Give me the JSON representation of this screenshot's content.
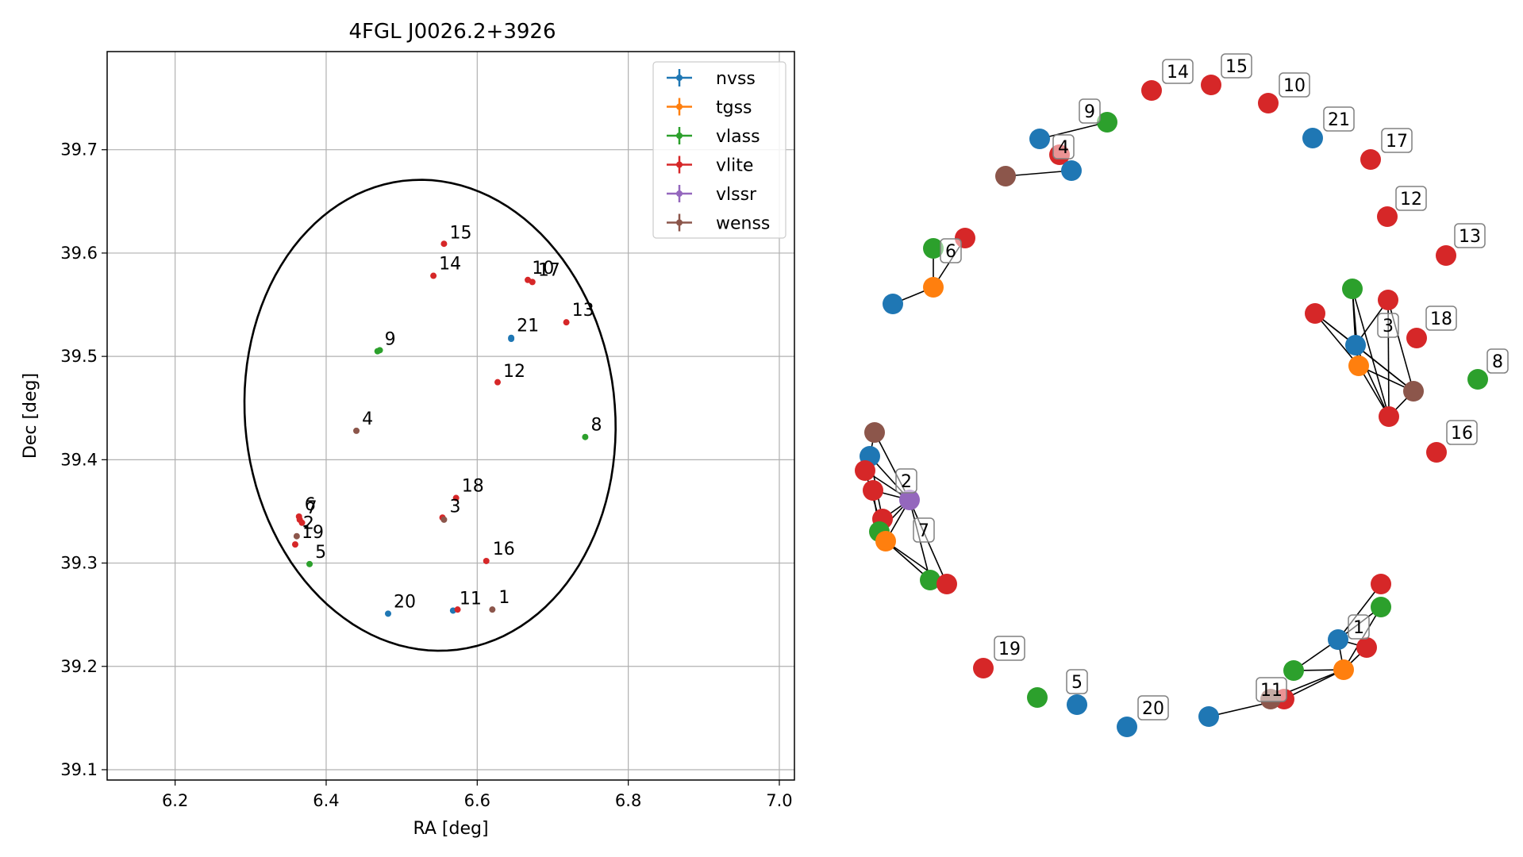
{
  "colors": {
    "nvss": "#1f77b4",
    "tgss": "#ff7f0e",
    "vlass": "#2ca02c",
    "vlite": "#d62728",
    "vlssr": "#9467bd",
    "wenss": "#8c564b"
  },
  "chart_data": [
    {
      "type": "scatter",
      "title": "4FGL J0026.2+3926",
      "xlabel": "RA [deg]",
      "ylabel": "Dec [deg]",
      "xlim": [
        6.11,
        7.02
      ],
      "ylim": [
        39.09,
        39.795
      ],
      "xticks": [
        6.2,
        6.4,
        6.6,
        6.8,
        7.0
      ],
      "xtick_labels": [
        "6.2",
        "6.4",
        "6.6",
        "6.8",
        "7.0"
      ],
      "yticks": [
        39.1,
        39.2,
        39.3,
        39.4,
        39.5,
        39.6,
        39.7
      ],
      "ytick_labels": [
        "39.1",
        "39.2",
        "39.3",
        "39.4",
        "39.5",
        "39.6",
        "39.7"
      ],
      "grid": true,
      "legend_position": "top-right",
      "legend": [
        "nvss",
        "tgss",
        "vlass",
        "vlite",
        "vlssr",
        "wenss"
      ],
      "ellipse": {
        "center": [
          6.5375,
          39.443
        ],
        "half_axis_ra": 0.2475,
        "half_axis_dec": 0.226,
        "angle_deg": 17
      },
      "points": [
        {
          "ra": 6.645,
          "dec": 39.518,
          "survey": "nvss"
        },
        {
          "ra": 6.645,
          "dec": 39.517,
          "survey": "nvss"
        },
        {
          "ra": 6.482,
          "dec": 39.251,
          "survey": "nvss"
        },
        {
          "ra": 6.568,
          "dec": 39.254,
          "survey": "nvss"
        },
        {
          "ra": 6.468,
          "dec": 39.505,
          "survey": "vlass"
        },
        {
          "ra": 6.471,
          "dec": 39.506,
          "survey": "vlass"
        },
        {
          "ra": 6.743,
          "dec": 39.422,
          "survey": "vlass"
        },
        {
          "ra": 6.378,
          "dec": 39.299,
          "survey": "vlass"
        },
        {
          "ra": 6.556,
          "dec": 39.609,
          "survey": "vlite"
        },
        {
          "ra": 6.542,
          "dec": 39.578,
          "survey": "vlite"
        },
        {
          "ra": 6.667,
          "dec": 39.574,
          "survey": "vlite"
        },
        {
          "ra": 6.673,
          "dec": 39.572,
          "survey": "vlite"
        },
        {
          "ra": 6.718,
          "dec": 39.533,
          "survey": "vlite"
        },
        {
          "ra": 6.627,
          "dec": 39.475,
          "survey": "vlite"
        },
        {
          "ra": 6.572,
          "dec": 39.363,
          "survey": "vlite"
        },
        {
          "ra": 6.554,
          "dec": 39.344,
          "survey": "vlite"
        },
        {
          "ra": 6.612,
          "dec": 39.302,
          "survey": "vlite"
        },
        {
          "ra": 6.574,
          "dec": 39.255,
          "survey": "vlite"
        },
        {
          "ra": 6.364,
          "dec": 39.345,
          "survey": "vlite"
        },
        {
          "ra": 6.365,
          "dec": 39.342,
          "survey": "vlite"
        },
        {
          "ra": 6.368,
          "dec": 39.339,
          "survey": "vlite"
        },
        {
          "ra": 6.359,
          "dec": 39.318,
          "survey": "vlite"
        },
        {
          "ra": 6.44,
          "dec": 39.428,
          "survey": "wenss"
        },
        {
          "ra": 6.556,
          "dec": 39.342,
          "survey": "wenss"
        },
        {
          "ra": 6.62,
          "dec": 39.255,
          "survey": "wenss"
        },
        {
          "ra": 6.361,
          "dec": 39.326,
          "survey": "wenss"
        }
      ],
      "labels": [
        {
          "text": "15",
          "ra": 6.555,
          "dec": 39.608
        },
        {
          "text": "14",
          "ra": 6.541,
          "dec": 39.578
        },
        {
          "text": "10",
          "ra": 6.664,
          "dec": 39.574
        },
        {
          "text": "17",
          "ra": 6.672,
          "dec": 39.572
        },
        {
          "text": "13",
          "ra": 6.717,
          "dec": 39.533
        },
        {
          "text": "21",
          "ra": 6.644,
          "dec": 39.518
        },
        {
          "text": "9",
          "ra": 6.469,
          "dec": 39.505
        },
        {
          "text": "12",
          "ra": 6.626,
          "dec": 39.474
        },
        {
          "text": "4",
          "ra": 6.439,
          "dec": 39.428
        },
        {
          "text": "8",
          "ra": 6.742,
          "dec": 39.422
        },
        {
          "text": "18",
          "ra": 6.571,
          "dec": 39.363
        },
        {
          "text": "3",
          "ra": 6.555,
          "dec": 39.343
        },
        {
          "text": "6",
          "ra": 6.363,
          "dec": 39.345
        },
        {
          "text": "7",
          "ra": 6.365,
          "dec": 39.342
        },
        {
          "text": "2",
          "ra": 6.361,
          "dec": 39.327
        },
        {
          "text": "19",
          "ra": 6.359,
          "dec": 39.318
        },
        {
          "text": "5",
          "ra": 6.377,
          "dec": 39.299
        },
        {
          "text": "16",
          "ra": 6.612,
          "dec": 39.302
        },
        {
          "text": "20",
          "ra": 6.481,
          "dec": 39.251
        },
        {
          "text": "11",
          "ra": 6.568,
          "dec": 39.254
        },
        {
          "text": "1",
          "ra": 6.62,
          "dec": 39.255
        }
      ]
    },
    {
      "type": "network",
      "nodes": [
        {
          "id": "a1",
          "survey": "nvss"
        },
        {
          "id": "a2",
          "survey": "vlass"
        },
        {
          "id": "a3",
          "survey": "vlite"
        },
        {
          "id": "a4",
          "survey": "wenss"
        },
        {
          "id": "a5",
          "survey": "nvss"
        },
        {
          "id": "b1",
          "survey": "nvss"
        },
        {
          "id": "b2",
          "survey": "tgss"
        },
        {
          "id": "b3",
          "survey": "vlass"
        },
        {
          "id": "b4",
          "survey": "vlite"
        },
        {
          "id": "c1",
          "survey": "vlass"
        },
        {
          "id": "c2",
          "survey": "vlite"
        },
        {
          "id": "c3",
          "survey": "vlite"
        },
        {
          "id": "c4",
          "survey": "nvss"
        },
        {
          "id": "c5",
          "survey": "tgss"
        },
        {
          "id": "c6",
          "survey": "wenss"
        },
        {
          "id": "c7",
          "survey": "vlite"
        },
        {
          "id": "d1",
          "survey": "wenss"
        },
        {
          "id": "d2",
          "survey": "nvss"
        },
        {
          "id": "d3",
          "survey": "vlite"
        },
        {
          "id": "d4",
          "survey": "vlite"
        },
        {
          "id": "d5",
          "survey": "vlssr"
        },
        {
          "id": "d6",
          "survey": "vlite"
        },
        {
          "id": "d7",
          "survey": "vlass"
        },
        {
          "id": "d8",
          "survey": "tgss"
        },
        {
          "id": "d9",
          "survey": "vlass"
        },
        {
          "id": "d10",
          "survey": "vlite"
        },
        {
          "id": "e1",
          "survey": "vlite"
        },
        {
          "id": "e2",
          "survey": "vlass"
        },
        {
          "id": "e3",
          "survey": "nvss"
        },
        {
          "id": "e4",
          "survey": "vlite"
        },
        {
          "id": "e5",
          "survey": "vlass"
        },
        {
          "id": "e6",
          "survey": "tgss"
        },
        {
          "id": "e7",
          "survey": "vlite"
        },
        {
          "id": "e8",
          "survey": "wenss"
        },
        {
          "id": "e9",
          "survey": "nvss"
        },
        {
          "id": "n14",
          "survey": "vlite"
        },
        {
          "id": "n15",
          "survey": "vlite"
        },
        {
          "id": "n10",
          "survey": "vlite"
        },
        {
          "id": "n21",
          "survey": "nvss"
        },
        {
          "id": "n17",
          "survey": "vlite"
        },
        {
          "id": "n12",
          "survey": "vlite"
        },
        {
          "id": "n13",
          "survey": "vlite"
        },
        {
          "id": "n18",
          "survey": "vlite"
        },
        {
          "id": "n8",
          "survey": "vlass"
        },
        {
          "id": "n16",
          "survey": "vlite"
        },
        {
          "id": "n19",
          "survey": "vlite"
        },
        {
          "id": "n5v",
          "survey": "vlass"
        },
        {
          "id": "n5",
          "survey": "nvss"
        },
        {
          "id": "n20",
          "survey": "nvss"
        }
      ],
      "edges": [
        [
          "a2",
          "a1"
        ],
        [
          "a3",
          "a5"
        ],
        [
          "a4",
          "a5"
        ],
        [
          "b1",
          "b2"
        ],
        [
          "b2",
          "b3"
        ],
        [
          "b2",
          "b4"
        ],
        [
          "c1",
          "c4"
        ],
        [
          "c2",
          "c4"
        ],
        [
          "c3",
          "c4"
        ],
        [
          "c5",
          "c4"
        ],
        [
          "c6",
          "c4"
        ],
        [
          "c7",
          "c4"
        ],
        [
          "c1",
          "c5"
        ],
        [
          "c2",
          "c6"
        ],
        [
          "c3",
          "c6"
        ],
        [
          "c5",
          "c6"
        ],
        [
          "c7",
          "c6"
        ],
        [
          "c1",
          "c7"
        ],
        [
          "c3",
          "c7"
        ],
        [
          "c5",
          "c7"
        ],
        [
          "c2",
          "c5"
        ],
        [
          "d1",
          "d2"
        ],
        [
          "d1",
          "d5"
        ],
        [
          "d2",
          "d5"
        ],
        [
          "d3",
          "d5"
        ],
        [
          "d4",
          "d5"
        ],
        [
          "d6",
          "d5"
        ],
        [
          "d7",
          "d5"
        ],
        [
          "d8",
          "d5"
        ],
        [
          "d9",
          "d8"
        ],
        [
          "d10",
          "d8"
        ],
        [
          "d2",
          "d6"
        ],
        [
          "d4",
          "d7"
        ],
        [
          "d6",
          "d8"
        ],
        [
          "d3",
          "d8"
        ],
        [
          "d10",
          "d5"
        ],
        [
          "d9",
          "d5"
        ],
        [
          "e1",
          "e3"
        ],
        [
          "e2",
          "e3"
        ],
        [
          "e4",
          "e3"
        ],
        [
          "e5",
          "e6"
        ],
        [
          "e6",
          "e3"
        ],
        [
          "e7",
          "e6"
        ],
        [
          "e8",
          "e6"
        ],
        [
          "e9",
          "e7"
        ],
        [
          "e5",
          "e3"
        ],
        [
          "e2",
          "e6"
        ],
        [
          "e4",
          "e6"
        ]
      ],
      "labels": [
        "9",
        "4",
        "6",
        "3",
        "2",
        "7",
        "1",
        "11",
        "14",
        "15",
        "10",
        "21",
        "17",
        "12",
        "13",
        "18",
        "8",
        "16",
        "19",
        "5",
        "20"
      ]
    }
  ]
}
